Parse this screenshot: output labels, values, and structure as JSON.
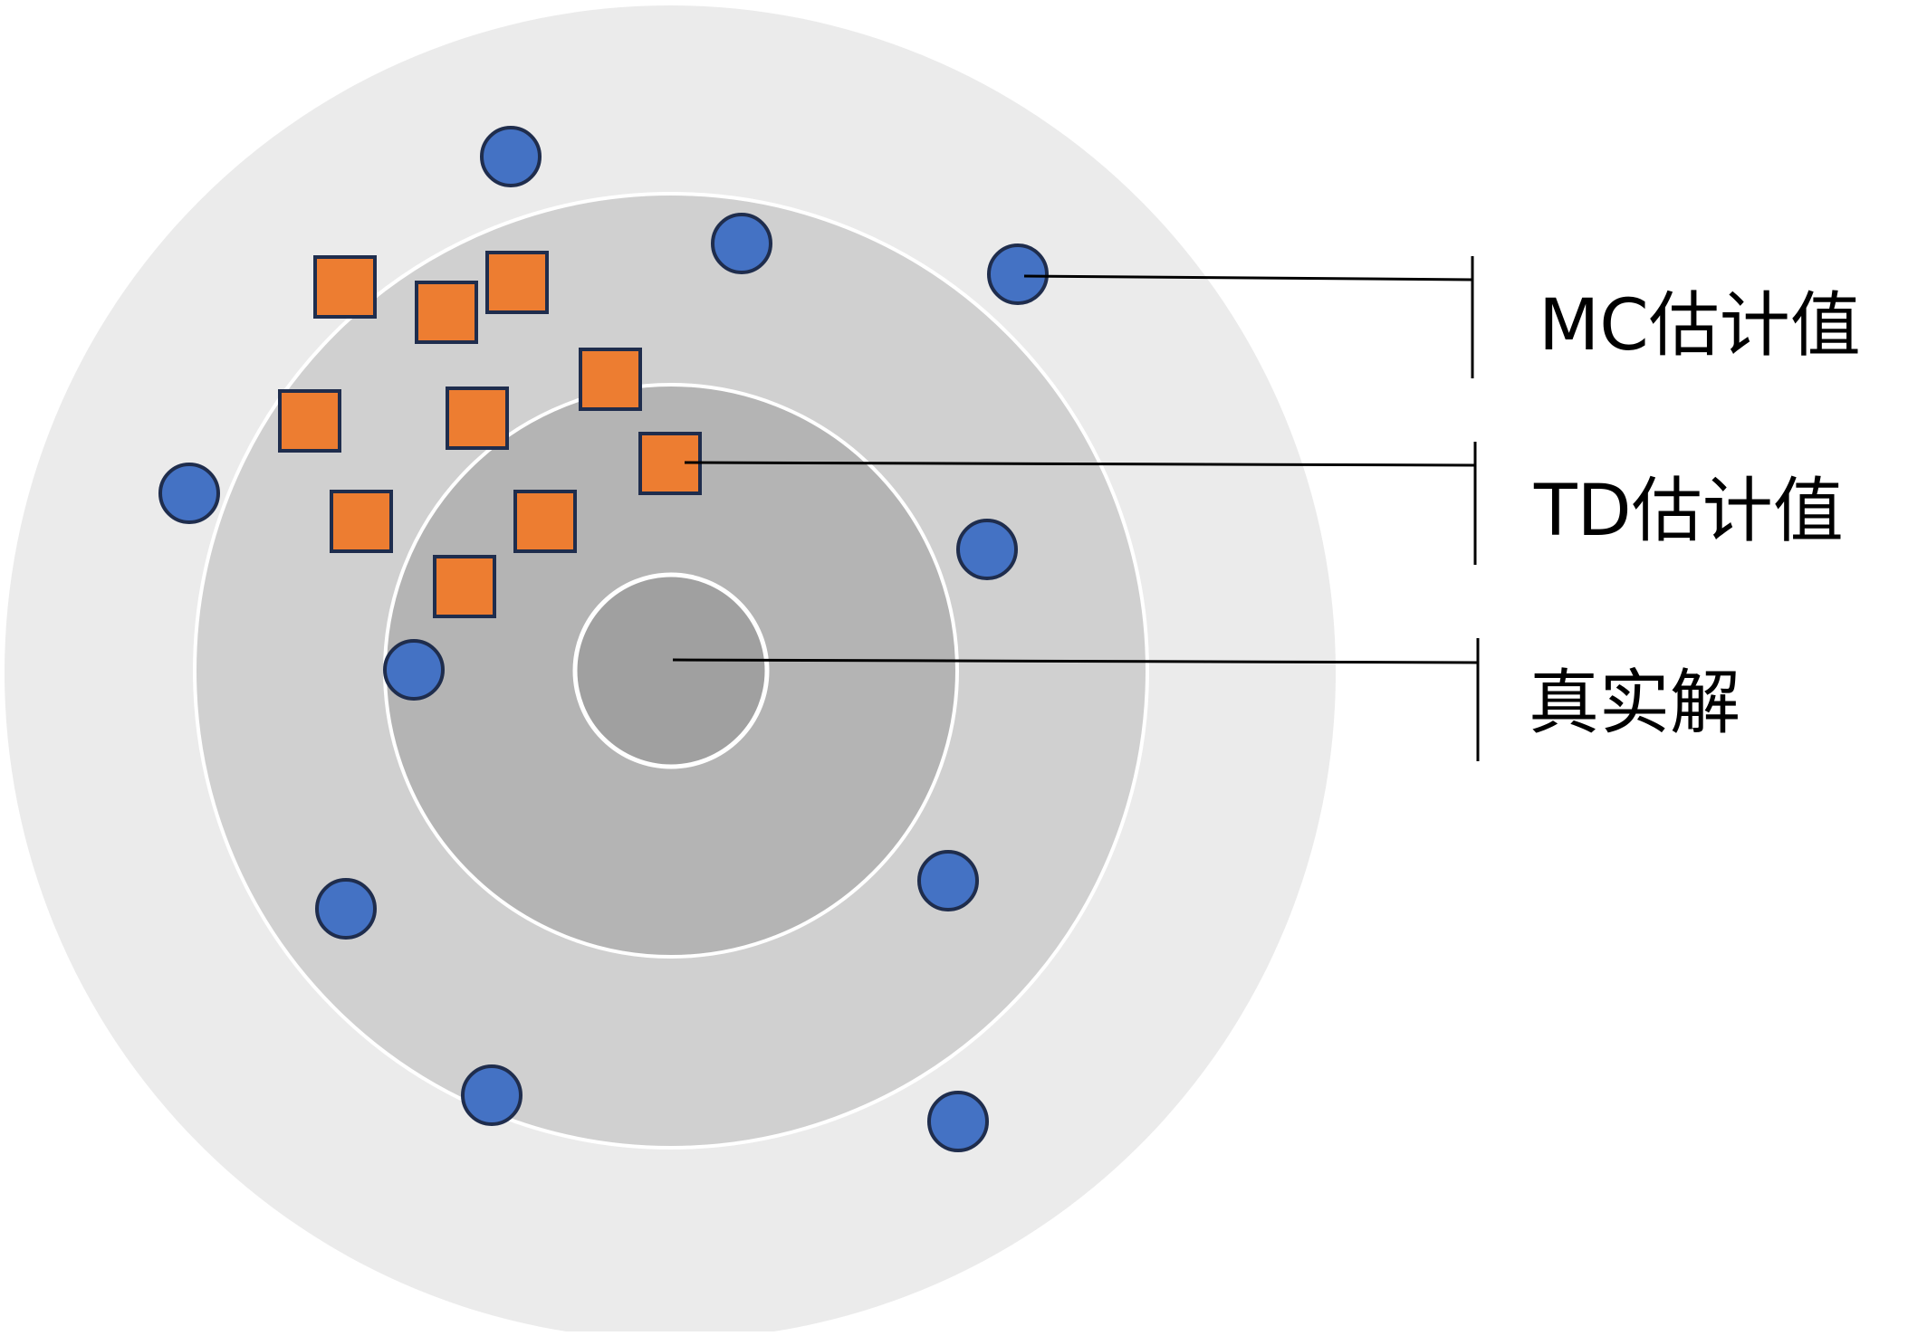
{
  "labels": {
    "mc": "MC估计值",
    "td": "TD估计值",
    "truth": "真实解"
  },
  "colors": {
    "outer_ring": "#ebebeb",
    "mid_ring": "#d0d0d0",
    "inner_ring": "#b4b4b4",
    "center": "#a0a0a0",
    "ring_outline": "#ffffff",
    "circle_marker": "#4472c4",
    "square_marker": "#ed7d31",
    "marker_outline": "#1f2d4d",
    "leader_line": "#000000"
  }
}
